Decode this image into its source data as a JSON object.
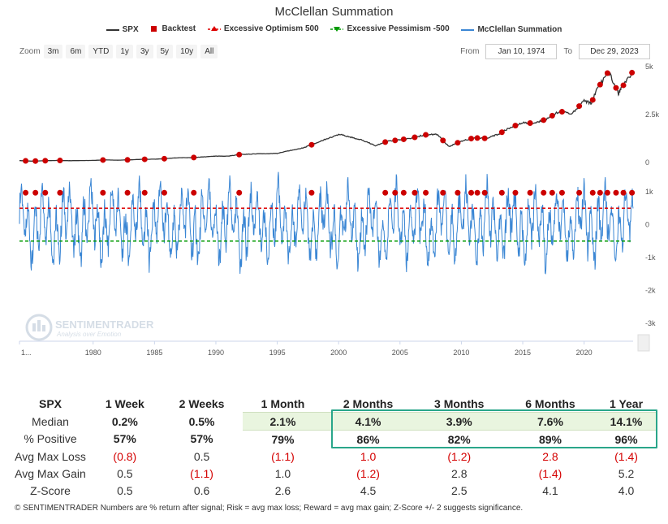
{
  "chart_data": {
    "title": "McClellan Summation",
    "type": "line",
    "legend": [
      {
        "name": "SPX",
        "color": "#333333",
        "marker": "line"
      },
      {
        "name": "Backtest",
        "color": "#cc0000",
        "marker": "square"
      },
      {
        "name": "Excessive Optimism 500",
        "color": "#dd0000",
        "marker": "dashed-triangle-up"
      },
      {
        "name": "Excessive Pessimism -500",
        "color": "#009900",
        "marker": "dashed-triangle-down"
      },
      {
        "name": "McClellan Summation",
        "color": "#3a86d4",
        "marker": "line"
      }
    ],
    "x_range": [
      1974,
      2023.99
    ],
    "x_ticks": [
      "1...",
      "1980",
      "1985",
      "1990",
      "1995",
      "2000",
      "2005",
      "2010",
      "2015",
      "2020"
    ],
    "x_tick_values": [
      1974,
      1980,
      1985,
      1990,
      1995,
      2000,
      2005,
      2010,
      2015,
      2020
    ],
    "top_axis": {
      "ticks": [
        "0",
        "2.5k",
        "5k"
      ],
      "tick_values": [
        0,
        2500,
        5000
      ],
      "ylim": [
        0,
        5000
      ]
    },
    "bottom_axis": {
      "ticks": [
        "1k",
        "0",
        "-1k",
        "-2k",
        "-3k"
      ],
      "tick_values": [
        1000,
        0,
        -1000,
        -2000,
        -3000
      ],
      "ylim": [
        -3000,
        1000
      ]
    },
    "spx_series": {
      "name": "SPX",
      "x": [
        1974,
        1975,
        1976,
        1977,
        1978,
        1979,
        1980,
        1981,
        1982,
        1983,
        1984,
        1985,
        1986,
        1987,
        1988,
        1989,
        1990,
        1991,
        1992,
        1993,
        1994,
        1995,
        1996,
        1997,
        1998,
        1999,
        2000,
        2001,
        2002,
        2003,
        2004,
        2005,
        2006,
        2007,
        2008,
        2009,
        2010,
        2011,
        2012,
        2013,
        2014,
        2015,
        2016,
        2017,
        2018,
        2019,
        2020,
        2020.6,
        2021,
        2022,
        2022.8,
        2023,
        2023.99
      ],
      "y": [
        98,
        70,
        90,
        107,
        95,
        100,
        108,
        135,
        120,
        140,
        165,
        170,
        205,
        250,
        250,
        290,
        330,
        330,
        420,
        440,
        460,
        470,
        620,
        740,
        970,
        1230,
        1469,
        1320,
        1150,
        880,
        1110,
        1180,
        1280,
        1440,
        1470,
        830,
        1115,
        1280,
        1260,
        1470,
        1830,
        2060,
        2050,
        2280,
        2680,
        2510,
        3230,
        3100,
        3760,
        4760,
        3600,
        3840,
        4770
      ]
    },
    "backtest_dates": [
      1974.5,
      1975.3,
      1976.1,
      1977.3,
      1980.8,
      1982.8,
      1984.2,
      1985.8,
      1988.2,
      1991.9,
      1997.8,
      2003.8,
      2004.6,
      2005.3,
      2006.2,
      2007.1,
      2008.5,
      2009.7,
      2010.8,
      2011.3,
      2011.9,
      2013.3,
      2014.4,
      2015.6,
      2016.7,
      2017.4,
      2018.2,
      2019.6,
      2020.7,
      2021.3,
      2021.9,
      2022.6,
      2023.2,
      2023.9
    ],
    "summation_markers": [
      970,
      970,
      970,
      970,
      970,
      970,
      970,
      970,
      970,
      970,
      970,
      970,
      970,
      970,
      970,
      970,
      970,
      970,
      970,
      970,
      970,
      970,
      970,
      970,
      970,
      970,
      970,
      970,
      970,
      970,
      970,
      970,
      970,
      970
    ],
    "optimism_level": 500,
    "pessimism_level": -500,
    "watermark_brand": "SENTIMENTRADER",
    "watermark_tagline": "Analysis over Emotion"
  },
  "controls": {
    "zoom_label": "Zoom",
    "zoom_buttons": [
      "3m",
      "6m",
      "YTD",
      "1y",
      "3y",
      "5y",
      "10y",
      "All"
    ],
    "from_label": "From",
    "from_date": "Jan 10, 1974",
    "to_label": "To",
    "to_date": "Dec 29, 2023"
  },
  "table": {
    "headers": [
      "SPX",
      "1 Week",
      "2 Weeks",
      "1 Month",
      "2 Months",
      "3 Months",
      "6 Months",
      "1 Year"
    ],
    "rows": [
      {
        "label": "Median",
        "values": [
          "0.2%",
          "0.5%",
          "2.1%",
          "4.1%",
          "3.9%",
          "7.6%",
          "14.1%"
        ]
      },
      {
        "label": "% Positive",
        "values": [
          "57%",
          "57%",
          "79%",
          "86%",
          "82%",
          "89%",
          "96%"
        ]
      },
      {
        "label": "Avg Max Loss",
        "values": [
          "(0.8)",
          "0.5",
          "(1.1)",
          "1.0",
          "(1.2)",
          "2.8",
          "(1.4)"
        ]
      },
      {
        "label": "Avg Max Gain",
        "values": [
          "0.5",
          "(1.1)",
          "1.0",
          "(1.2)",
          "2.8",
          "(1.4)",
          "5.2"
        ]
      },
      {
        "label": "Z-Score",
        "values": [
          "0.5",
          "0.6",
          "2.6",
          "4.5",
          "2.5",
          "4.1",
          "4.0"
        ]
      }
    ]
  },
  "footer": "© SENTIMENTRADER  Numbers are % return after signal; Risk = avg max loss; Reward = avg max gain; Z-Score +/- 2 suggests significance."
}
